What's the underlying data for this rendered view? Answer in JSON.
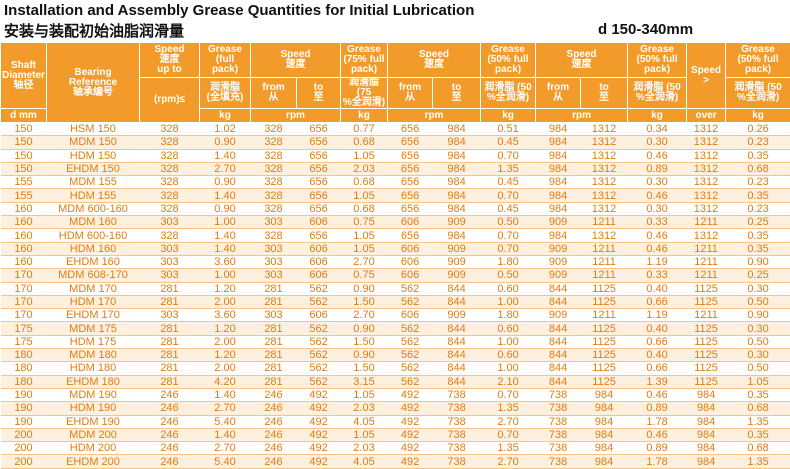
{
  "title": "Installation and Assembly Grease Quantities for Initial Lubrication",
  "subtitle": "安装与装配初始油脂润滑量",
  "range": "d 150-340mm",
  "header": [
    [
      [
        "Shaft",
        "Diameter",
        "轴径"
      ],
      [
        "Bearing",
        "Reference",
        "轴承编号"
      ],
      [
        "Speed",
        "速度",
        "up to"
      ],
      [
        "Grease",
        "(full",
        "pack)"
      ],
      [
        "Speed",
        "速度"
      ],
      [
        "Grease",
        "(75% full",
        "pack)"
      ],
      [
        "Speed",
        "速度"
      ],
      [
        "Grease",
        "(50% full",
        "pack)"
      ],
      [
        "Speed",
        "速度"
      ],
      [
        "Grease",
        "(50% full",
        "pack)"
      ],
      [
        "Speed",
        ">"
      ],
      [
        "Grease",
        "(50% full",
        "pack)"
      ]
    ],
    [
      [
        "(rpm)≤"
      ],
      [
        "润滑脂",
        "(全填充)"
      ],
      [
        "from",
        "从"
      ],
      [
        "to",
        "至"
      ],
      [
        "润滑脂 (75",
        "%全润滑)"
      ],
      [
        "from",
        "从"
      ],
      [
        "to",
        "至"
      ],
      [
        "润滑脂 (50",
        "%全润滑)"
      ],
      [
        "from",
        "从"
      ],
      [
        "to",
        "至"
      ],
      [
        "润滑脂 (50",
        "%全润滑)"
      ],
      [
        "润滑脂 (50",
        "%全润滑)"
      ]
    ],
    [
      [
        "d mm"
      ],
      [
        "kg"
      ],
      [
        "rpm"
      ],
      [
        "kg"
      ],
      [
        "rpm"
      ],
      [
        "kg"
      ],
      [
        "rpm"
      ],
      [
        "kg"
      ],
      [
        "over"
      ],
      [
        "kg"
      ]
    ]
  ],
  "rows": [
    [
      "150",
      "HSM 150",
      "328",
      "1.02",
      "328",
      "656",
      "0.77",
      "656",
      "984",
      "0.51",
      "984",
      "1312",
      "0.34",
      "1312",
      "0.26"
    ],
    [
      "150",
      "MDM 150",
      "328",
      "0.90",
      "328",
      "656",
      "0.68",
      "656",
      "984",
      "0.45",
      "984",
      "1312",
      "0.30",
      "1312",
      "0.23"
    ],
    [
      "150",
      "HDM 150",
      "328",
      "1.40",
      "328",
      "656",
      "1.05",
      "656",
      "984",
      "0.70",
      "984",
      "1312",
      "0.46",
      "1312",
      "0.35"
    ],
    [
      "150",
      "EHDM 150",
      "328",
      "2.70",
      "328",
      "656",
      "2.03",
      "656",
      "984",
      "1.35",
      "984",
      "1312",
      "0.89",
      "1312",
      "0.68"
    ],
    [
      "155",
      "MDM 155",
      "328",
      "0.90",
      "328",
      "656",
      "0.68",
      "656",
      "984",
      "0.45",
      "984",
      "1312",
      "0.30",
      "1312",
      "0.23"
    ],
    [
      "155",
      "HDM 155",
      "328",
      "1.40",
      "328",
      "656",
      "1.05",
      "656",
      "984",
      "0.70",
      "984",
      "1312",
      "0.46",
      "1312",
      "0.35"
    ],
    [
      "160",
      "MDM 600-160",
      "328",
      "0.90",
      "328",
      "656",
      "0.68",
      "656",
      "984",
      "0.45",
      "984",
      "1312",
      "0.30",
      "1312",
      "0.23"
    ],
    [
      "160",
      "MDM 160",
      "303",
      "1.00",
      "303",
      "606",
      "0.75",
      "606",
      "909",
      "0.50",
      "909",
      "1211",
      "0.33",
      "1211",
      "0.25"
    ],
    [
      "160",
      "HDM 600-160",
      "328",
      "1.40",
      "328",
      "656",
      "1.05",
      "656",
      "984",
      "0.70",
      "984",
      "1312",
      "0.46",
      "1312",
      "0.35"
    ],
    [
      "160",
      "HDM 160",
      "303",
      "1.40",
      "303",
      "606",
      "1.05",
      "606",
      "909",
      "0.70",
      "909",
      "1211",
      "0.46",
      "1211",
      "0.35"
    ],
    [
      "160",
      "EHDM 160",
      "303",
      "3.60",
      "303",
      "606",
      "2.70",
      "606",
      "909",
      "1.80",
      "909",
      "1211",
      "1.19",
      "1211",
      "0.90"
    ],
    [
      "170",
      "MDM 608-170",
      "303",
      "1.00",
      "303",
      "606",
      "0.75",
      "606",
      "909",
      "0.50",
      "909",
      "1211",
      "0.33",
      "1211",
      "0.25"
    ],
    [
      "170",
      "MDM 170",
      "281",
      "1.20",
      "281",
      "562",
      "0.90",
      "562",
      "844",
      "0.60",
      "844",
      "1125",
      "0.40",
      "1125",
      "0.30"
    ],
    [
      "170",
      "HDM 170",
      "281",
      "2.00",
      "281",
      "562",
      "1.50",
      "562",
      "844",
      "1.00",
      "844",
      "1125",
      "0.66",
      "1125",
      "0.50"
    ],
    [
      "170",
      "EHDM 170",
      "303",
      "3.60",
      "303",
      "606",
      "2.70",
      "606",
      "909",
      "1.80",
      "909",
      "1211",
      "1.19",
      "1211",
      "0.90"
    ],
    [
      "175",
      "MDM 175",
      "281",
      "1.20",
      "281",
      "562",
      "0.90",
      "562",
      "844",
      "0.60",
      "844",
      "1125",
      "0.40",
      "1125",
      "0.30"
    ],
    [
      "175",
      "HDM 175",
      "281",
      "2.00",
      "281",
      "562",
      "1.50",
      "562",
      "844",
      "1.00",
      "844",
      "1125",
      "0.66",
      "1125",
      "0.50"
    ],
    [
      "180",
      "MDM 180",
      "281",
      "1.20",
      "281",
      "562",
      "0.90",
      "562",
      "844",
      "0.60",
      "844",
      "1125",
      "0.40",
      "1125",
      "0.30"
    ],
    [
      "180",
      "HDM 180",
      "281",
      "2.00",
      "281",
      "562",
      "1.50",
      "562",
      "844",
      "1.00",
      "844",
      "1125",
      "0.66",
      "1125",
      "0.50"
    ],
    [
      "180",
      "EHDM 180",
      "281",
      "4.20",
      "281",
      "562",
      "3.15",
      "562",
      "844",
      "2.10",
      "844",
      "1125",
      "1.39",
      "1125",
      "1.05"
    ],
    [
      "190",
      "MDM 190",
      "246",
      "1.40",
      "246",
      "492",
      "1.05",
      "492",
      "738",
      "0.70",
      "738",
      "984",
      "0.46",
      "984",
      "0.35"
    ],
    [
      "190",
      "HDM 190",
      "246",
      "2.70",
      "246",
      "492",
      "2.03",
      "492",
      "738",
      "1.35",
      "738",
      "984",
      "0.89",
      "984",
      "0.68"
    ],
    [
      "190",
      "EHDM 190",
      "246",
      "5.40",
      "246",
      "492",
      "4.05",
      "492",
      "738",
      "2.70",
      "738",
      "984",
      "1.78",
      "984",
      "1.35"
    ],
    [
      "200",
      "MDM 200",
      "246",
      "1.40",
      "246",
      "492",
      "1.05",
      "492",
      "738",
      "0.70",
      "738",
      "984",
      "0.46",
      "984",
      "0.35"
    ],
    [
      "200",
      "HDM 200",
      "246",
      "2.70",
      "246",
      "492",
      "2.03",
      "492",
      "738",
      "1.35",
      "738",
      "984",
      "0.89",
      "984",
      "0.68"
    ],
    [
      "200",
      "EHDM 200",
      "246",
      "5.40",
      "246",
      "492",
      "4.05",
      "492",
      "738",
      "2.70",
      "738",
      "984",
      "1.78",
      "984",
      "1.35"
    ]
  ]
}
